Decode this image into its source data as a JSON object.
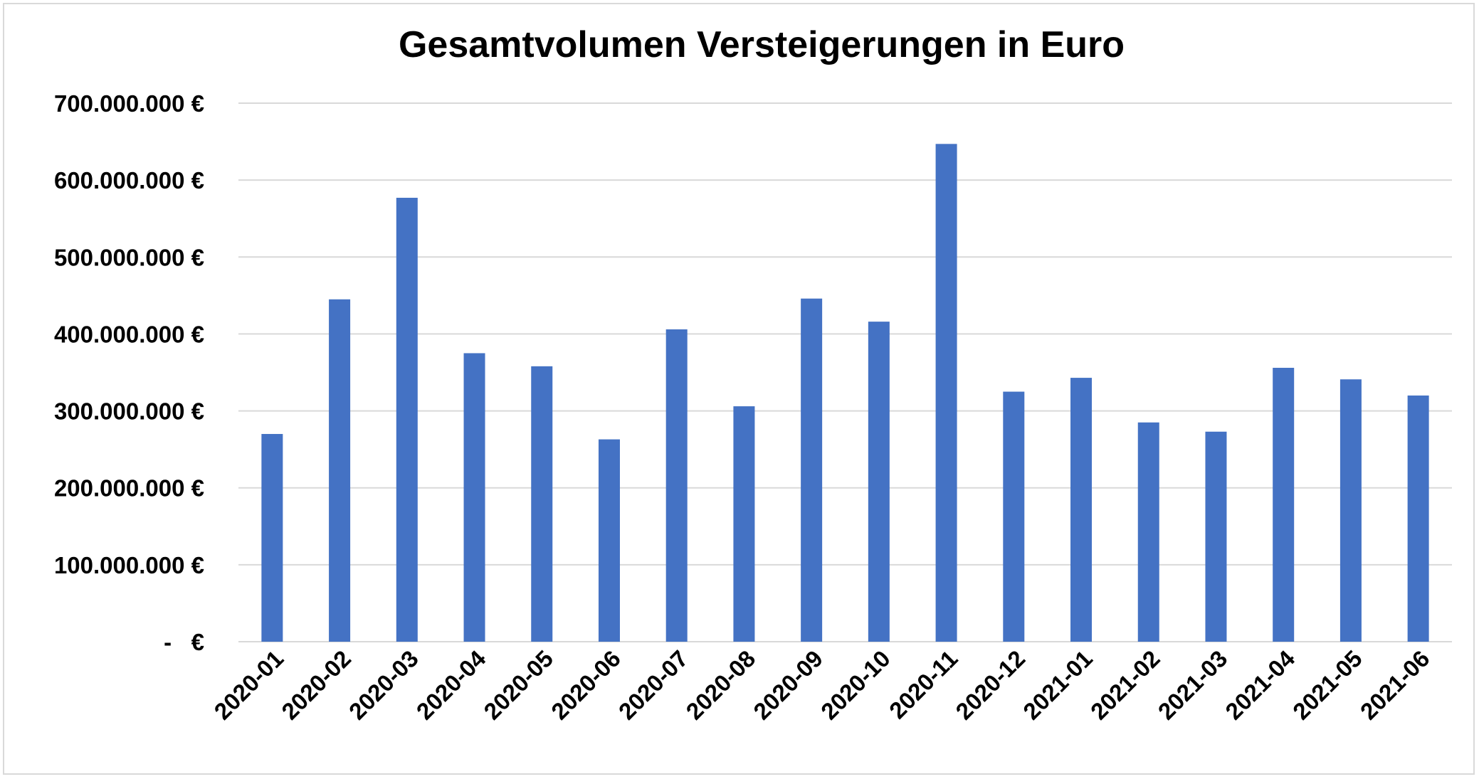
{
  "chart_data": {
    "type": "bar",
    "title": "Gesamtvolumen Versteigerungen in Euro",
    "xlabel": "",
    "ylabel": "",
    "categories": [
      "2020-01",
      "2020-02",
      "2020-03",
      "2020-04",
      "2020-05",
      "2020-06",
      "2020-07",
      "2020-08",
      "2020-09",
      "2020-10",
      "2020-11",
      "2020-12",
      "2021-01",
      "2021-02",
      "2021-03",
      "2021-04",
      "2021-05",
      "2021-06"
    ],
    "values": [
      270000000,
      445000000,
      577000000,
      375000000,
      358000000,
      263000000,
      406000000,
      306000000,
      446000000,
      416000000,
      647000000,
      325000000,
      343000000,
      285000000,
      273000000,
      356000000,
      341000000,
      320000000
    ],
    "ylim": [
      0,
      700000000
    ],
    "yticks": [
      0,
      100000000,
      200000000,
      300000000,
      400000000,
      500000000,
      600000000,
      700000000
    ],
    "ytick_labels": [
      "-   €",
      "100.000.000 €",
      "200.000.000 €",
      "300.000.000 €",
      "400.000.000 €",
      "500.000.000 €",
      "600.000.000 €",
      "700.000.000 €"
    ],
    "grid": true,
    "legend": "none",
    "bar_color": "#4472c4",
    "grid_color": "#d9d9d9"
  }
}
